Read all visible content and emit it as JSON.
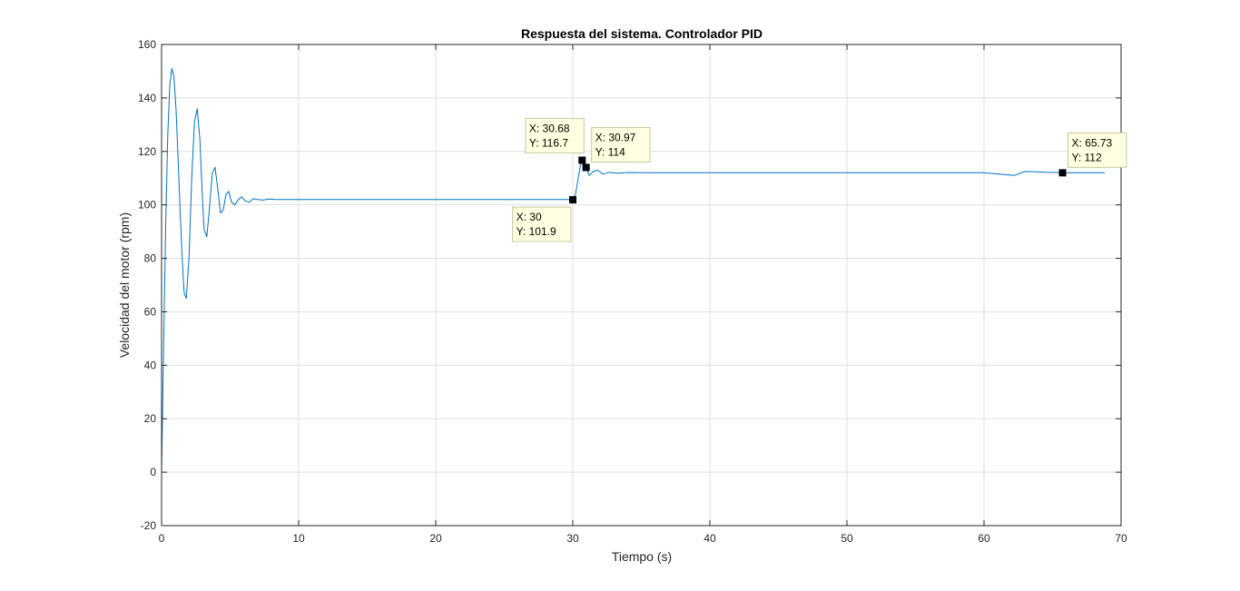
{
  "chart_data": {
    "type": "line",
    "title": "Respuesta del sistema. Controlador PID",
    "xlabel": "Tiempo (s)",
    "ylabel": "Velocidad del motor (rpm)",
    "xlim": [
      0,
      70
    ],
    "ylim": [
      -20,
      160
    ],
    "xticks": [
      0,
      10,
      20,
      30,
      40,
      50,
      60,
      70
    ],
    "yticks": [
      -20,
      0,
      20,
      40,
      60,
      80,
      100,
      120,
      140,
      160
    ],
    "grid": true,
    "line_color": "#0072BD",
    "series": [
      {
        "x": [
          0,
          0.15,
          0.3,
          0.45,
          0.6,
          0.75,
          0.9,
          1.05,
          1.2,
          1.35,
          1.5,
          1.65,
          1.8,
          2.0,
          2.2,
          2.4,
          2.6,
          2.8,
          2.95,
          3.1,
          3.3,
          3.5,
          3.7,
          3.9,
          4.1,
          4.3,
          4.5,
          4.7,
          4.9,
          5.1,
          5.35,
          5.6,
          5.85,
          6.1,
          6.4,
          6.7,
          7.0,
          7.4,
          7.8,
          8.3,
          9,
          10,
          12,
          14,
          16,
          18,
          20,
          22,
          24,
          26,
          28,
          29.5,
          30,
          30.2,
          30.4,
          30.55,
          30.68,
          30.8,
          30.97,
          31.2,
          31.5,
          31.8,
          32.2,
          32.7,
          33.3,
          34,
          36,
          38,
          40,
          45,
          50,
          55,
          60,
          62.2,
          63,
          65.73,
          67,
          68.8
        ],
        "values": [
          0,
          48,
          92,
          126,
          145,
          151,
          148,
          136,
          118,
          98,
          80,
          67,
          65,
          80,
          110,
          131,
          136,
          124,
          106,
          91,
          88,
          99,
          112,
          114,
          106,
          97,
          98,
          104,
          105,
          101,
          100,
          102,
          103,
          101.5,
          101,
          102.3,
          102,
          101.8,
          102.2,
          102,
          102,
          102,
          102,
          102,
          102,
          102,
          102,
          102,
          102,
          102,
          102,
          102,
          101.9,
          104,
          110,
          114.5,
          116.7,
          116.2,
          114,
          111,
          112.5,
          113,
          111.5,
          112.2,
          111.8,
          112.1,
          112,
          112,
          112,
          112,
          112,
          112,
          112,
          111,
          112.5,
          112,
          112,
          112
        ]
      }
    ],
    "datatips": [
      {
        "x": 30.68,
        "y": 116.7,
        "xtext": "X: 30.68",
        "ytext": "Y: 116.7",
        "placement": "upper-left"
      },
      {
        "x": 30.97,
        "y": 114,
        "xtext": "X: 30.97",
        "ytext": "Y: 114",
        "placement": "upper-right"
      },
      {
        "x": 30,
        "y": 101.9,
        "xtext": "X: 30",
        "ytext": "Y: 101.9",
        "placement": "lower-left"
      },
      {
        "x": 65.73,
        "y": 112,
        "xtext": "X: 65.73",
        "ytext": "Y: 112",
        "placement": "upper-right"
      }
    ]
  }
}
